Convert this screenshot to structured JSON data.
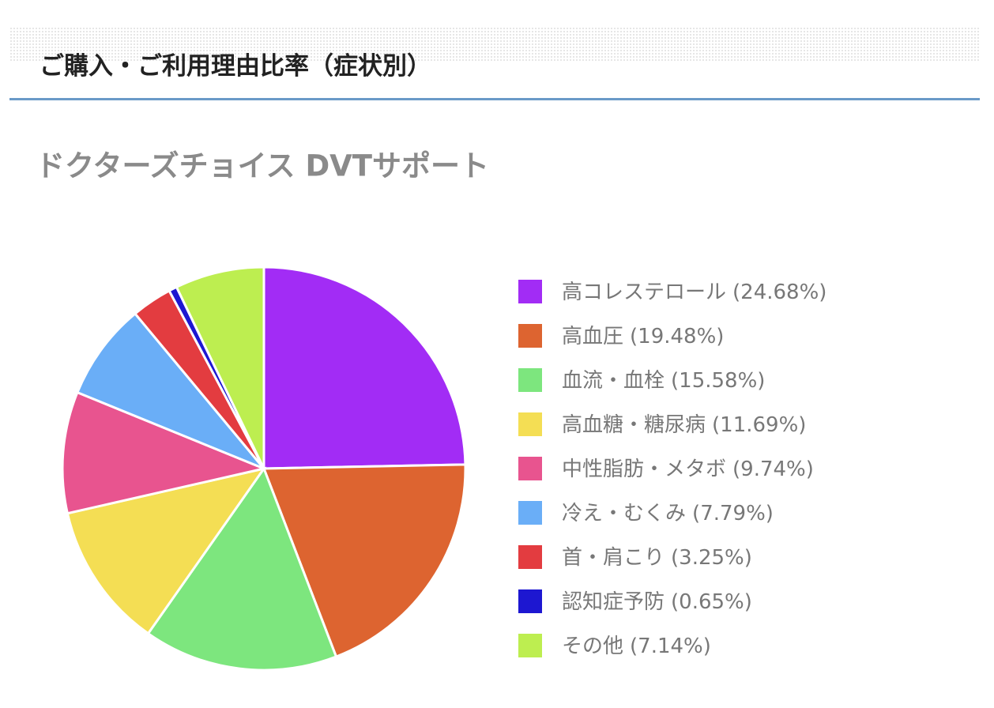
{
  "header": {
    "title": "ご購入・ご利用理由比率（症状別）"
  },
  "chart_data": {
    "type": "pie",
    "title": "ドクターズチョイス DVTサポート",
    "categories": [
      "高コレステロール",
      "高血圧",
      "血流・血栓",
      "高血糖・糖尿病",
      "中性脂肪・メタボ",
      "冷え・むくみ",
      "首・肩こり",
      "認知症予防",
      "その他"
    ],
    "values": [
      24.68,
      19.48,
      15.58,
      11.69,
      9.74,
      7.79,
      3.25,
      0.65,
      7.14
    ],
    "value_labels": [
      "(24.68%)",
      "(19.48%)",
      "(15.58%)",
      "(11.69%)",
      "(9.74%)",
      "(7.79%)",
      "(3.25%)",
      "(0.65%)",
      "(7.14%)"
    ],
    "colors": [
      "#a22cf5",
      "#dd6430",
      "#7de67e",
      "#f4de54",
      "#e8548f",
      "#6aaef7",
      "#e33c40",
      "#1d17d1",
      "#bdee50"
    ],
    "legend": "right"
  }
}
